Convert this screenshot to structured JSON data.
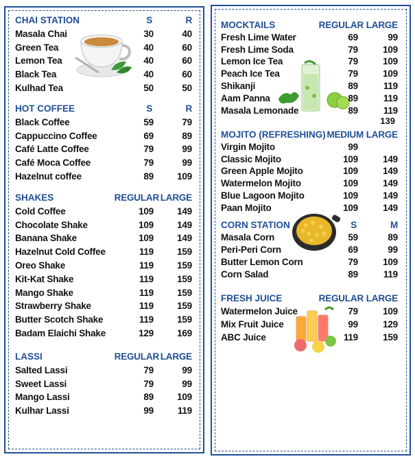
{
  "left": {
    "sections": [
      {
        "key": "chai",
        "title": "CHAI STATION",
        "cols": [
          "S",
          "R"
        ],
        "items": [
          {
            "name": "Masala Chai",
            "p1": "30",
            "p2": "40"
          },
          {
            "name": "Green Tea",
            "p1": "40",
            "p2": "60"
          },
          {
            "name": "Lemon Tea",
            "p1": "40",
            "p2": "60"
          },
          {
            "name": "Black Tea",
            "p1": "40",
            "p2": "60"
          },
          {
            "name": "Kulhad Tea",
            "p1": "50",
            "p2": "50"
          }
        ]
      },
      {
        "key": "coffee",
        "title": "HOT COFFEE",
        "cols": [
          "S",
          "R"
        ],
        "items": [
          {
            "name": "Black Coffee",
            "p1": "59",
            "p2": "79"
          },
          {
            "name": "Cappuccino Coffee",
            "p1": "69",
            "p2": "89"
          },
          {
            "name": "Café Latte Coffee",
            "p1": "79",
            "p2": "99"
          },
          {
            "name": "Café Moca Coffee",
            "p1": "79",
            "p2": "99"
          },
          {
            "name": "Hazelnut coffee",
            "p1": "89",
            "p2": "109"
          }
        ]
      },
      {
        "key": "shakes",
        "title": "SHAKES",
        "cols": [
          "REGULAR",
          "LARGE"
        ],
        "items": [
          {
            "name": "Cold Coffee",
            "p1": "109",
            "p2": "149"
          },
          {
            "name": "Chocolate Shake",
            "p1": "109",
            "p2": "149"
          },
          {
            "name": "Banana Shake",
            "p1": "109",
            "p2": "149"
          },
          {
            "name": "Hazelnut Cold Coffee",
            "p1": "119",
            "p2": "159"
          },
          {
            "name": "Oreo Shake",
            "p1": "119",
            "p2": "159"
          },
          {
            "name": "Kit-Kat Shake",
            "p1": "119",
            "p2": "159"
          },
          {
            "name": "Mango Shake",
            "p1": "119",
            "p2": "159"
          },
          {
            "name": "Strawberry Shake",
            "p1": "119",
            "p2": "159"
          },
          {
            "name": "Butter Scotch Shake",
            "p1": "119",
            "p2": "159"
          },
          {
            "name": "Badam Elaichi Shake",
            "p1": "129",
            "p2": "169"
          }
        ]
      },
      {
        "key": "lassi",
        "title": "LASSI",
        "cols": [
          "REGULAR",
          "LARGE"
        ],
        "items": [
          {
            "name": "Salted Lassi",
            "p1": "79",
            "p2": "99"
          },
          {
            "name": "Sweet Lassi",
            "p1": "79",
            "p2": "99"
          },
          {
            "name": "Mango Lassi",
            "p1": "89",
            "p2": "109"
          },
          {
            "name": "Kulhar Lassi",
            "p1": "99",
            "p2": "119"
          }
        ]
      }
    ]
  },
  "right": {
    "sections": [
      {
        "key": "mocktails",
        "title": "MOCKTAILS",
        "cols": [
          "REGULAR",
          "LARGE"
        ],
        "items": [
          {
            "name": "Fresh Lime Water",
            "p1": "69",
            "p2": "99"
          },
          {
            "name": "Fresh Lime Soda",
            "p1": "79",
            "p2": "109"
          },
          {
            "name": "Lemon Ice Tea",
            "p1": "79",
            "p2": "109"
          },
          {
            "name": "Peach Ice Tea",
            "p1": "79",
            "p2": "109"
          },
          {
            "name": "Shikanji",
            "p1": "89",
            "p2": "119"
          },
          {
            "name": "Aam Panna",
            "p1": "89",
            "p2": "119"
          },
          {
            "name": "Masala Lemonade",
            "p1": "89",
            "p2": "119"
          }
        ],
        "extra": "139"
      },
      {
        "key": "mojito",
        "title": "MOJITO (REFRESHING)",
        "cols": [
          "MEDIUM",
          "LARGE"
        ],
        "items": [
          {
            "name": "Virgin Mojito",
            "p1": "99",
            "p2": ""
          },
          {
            "name": "Classic Mojito",
            "p1": "109",
            "p2": "149"
          },
          {
            "name": "Green Apple Mojito",
            "p1": "109",
            "p2": "149"
          },
          {
            "name": "Watermelon Mojito",
            "p1": "109",
            "p2": "149"
          },
          {
            "name": "Blue Lagoon Mojito",
            "p1": "109",
            "p2": "149"
          },
          {
            "name": "Paan Mojito",
            "p1": "109",
            "p2": "149"
          }
        ]
      },
      {
        "key": "corn",
        "title": "CORN STATION",
        "cols": [
          "S",
          "M"
        ],
        "items": [
          {
            "name": "Masala Corn",
            "p1": "59",
            "p2": "89"
          },
          {
            "name": "Peri-Peri Corn",
            "p1": "69",
            "p2": "99"
          },
          {
            "name": "Butter Lemon Corn",
            "p1": "79",
            "p2": "109"
          },
          {
            "name": "Corn Salad",
            "p1": "89",
            "p2": "119"
          }
        ]
      },
      {
        "key": "juice",
        "title": "FRESH JUICE",
        "cols": [
          "REGULAR",
          "LARGE"
        ],
        "items": [
          {
            "name": "Watermelon Juice",
            "p1": "79",
            "p2": "109"
          },
          {
            "name": "Mix Fruit Juice",
            "p1": "99",
            "p2": "129"
          },
          {
            "name": "ABC Juice",
            "p1": "119",
            "p2": "159"
          }
        ]
      }
    ]
  },
  "colors": {
    "accent": "#1f4e96",
    "text": "#111111"
  },
  "images": [
    "tea-cup-image",
    "mojito-glass-image",
    "corn-bowl-image",
    "juice-glasses-image"
  ]
}
